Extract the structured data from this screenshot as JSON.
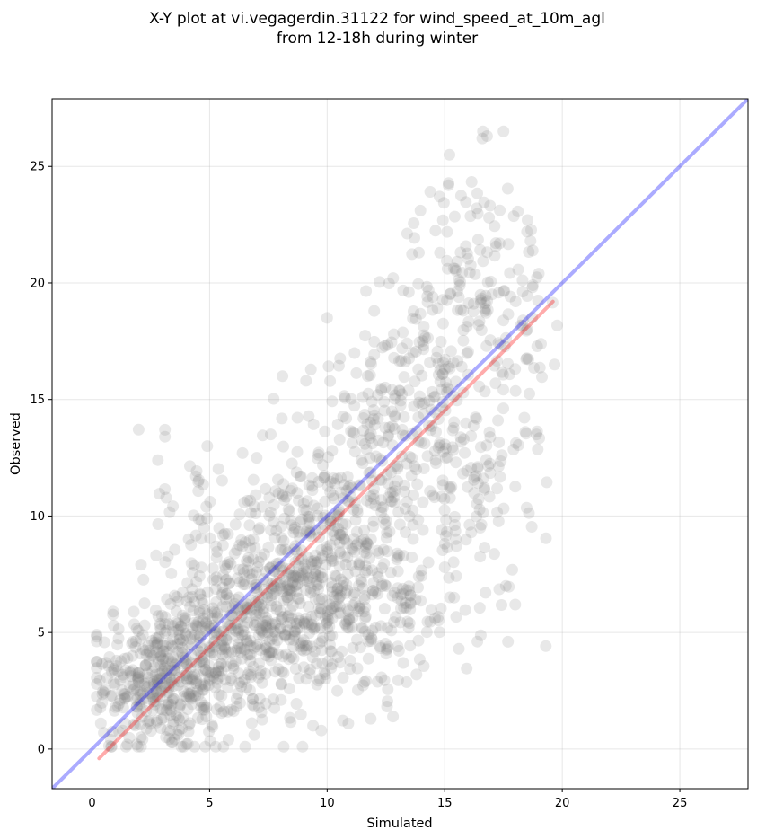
{
  "chart_data": {
    "type": "scatter",
    "title_lines": [
      "X-Y plot at vi.vegagerdin.31122 for wind_speed_at_10m_agl",
      "from 12-18h during winter"
    ],
    "xlabel": "Simulated",
    "ylabel": "Observed",
    "xlim": [
      -1.7,
      27.9
    ],
    "ylim": [
      -1.7,
      27.9
    ],
    "xticks": [
      0,
      5,
      10,
      15,
      20,
      25
    ],
    "yticks": [
      0,
      5,
      10,
      15,
      20,
      25
    ],
    "grid": true,
    "marker_color": "#808080",
    "marker_alpha": 0.18,
    "identity_line": {
      "color": "#0000ff",
      "alpha": 0.33,
      "from": [
        -1.7,
        -1.7
      ],
      "to": [
        27.9,
        27.9
      ]
    },
    "regression_line": {
      "color": "#ff0000",
      "alpha": 0.33,
      "from": [
        0.3,
        -0.4
      ],
      "to": [
        19.6,
        19.2
      ]
    },
    "clusters": [
      {
        "cx": 3.0,
        "cy": 3.0,
        "sx": 1.4,
        "sy": 1.6,
        "n": 380
      },
      {
        "cx": 6.5,
        "cy": 5.0,
        "sx": 1.8,
        "sy": 2.0,
        "n": 420
      },
      {
        "cx": 9.0,
        "cy": 7.0,
        "sx": 1.8,
        "sy": 2.2,
        "n": 300
      },
      {
        "cx": 11.0,
        "cy": 11.0,
        "sx": 1.6,
        "sy": 2.5,
        "n": 220
      },
      {
        "cx": 12.5,
        "cy": 6.0,
        "sx": 1.5,
        "sy": 2.0,
        "n": 120
      },
      {
        "cx": 14.0,
        "cy": 15.5,
        "sx": 1.6,
        "sy": 3.0,
        "n": 180
      },
      {
        "cx": 15.5,
        "cy": 11.5,
        "sx": 1.5,
        "sy": 2.8,
        "n": 120
      },
      {
        "cx": 16.5,
        "cy": 20.5,
        "sx": 1.4,
        "sy": 2.2,
        "n": 110
      },
      {
        "cx": 18.0,
        "cy": 15.0,
        "sx": 1.0,
        "sy": 4.0,
        "n": 40
      },
      {
        "cx": 4.0,
        "cy": 10.0,
        "sx": 1.0,
        "sy": 2.0,
        "n": 30
      }
    ],
    "points": [
      [
        0.5,
        0.7
      ],
      [
        0.6,
        3.7
      ],
      [
        0.9,
        5.9
      ],
      [
        2.8,
        12.4
      ],
      [
        3.1,
        13.7
      ],
      [
        3.1,
        13.4
      ],
      [
        4.9,
        13.0
      ],
      [
        5.8,
        0.4
      ],
      [
        9.4,
        1.0
      ],
      [
        10.9,
        1.1
      ],
      [
        12.8,
        1.4
      ],
      [
        13.0,
        4.4
      ],
      [
        13.8,
        3.2
      ],
      [
        15.6,
        4.3
      ],
      [
        15.0,
        7.8
      ],
      [
        16.8,
        26.3
      ],
      [
        17.5,
        26.5
      ],
      [
        16.6,
        26.2
      ],
      [
        15.2,
        25.5
      ],
      [
        18.5,
        22.2
      ],
      [
        19.0,
        20.4
      ],
      [
        18.9,
        13.5
      ],
      [
        18.0,
        6.2
      ],
      [
        17.6,
        7.0
      ],
      [
        10.0,
        18.5
      ],
      [
        12.0,
        18.8
      ],
      [
        9.1,
        15.8
      ],
      [
        8.1,
        16.0
      ],
      [
        7.6,
        13.5
      ],
      [
        6.4,
        12.7
      ],
      [
        7.0,
        12.5
      ],
      [
        1.2,
        2.1
      ],
      [
        0.8,
        0.4
      ],
      [
        1.9,
        0.2
      ],
      [
        3.8,
        0.1
      ]
    ]
  }
}
